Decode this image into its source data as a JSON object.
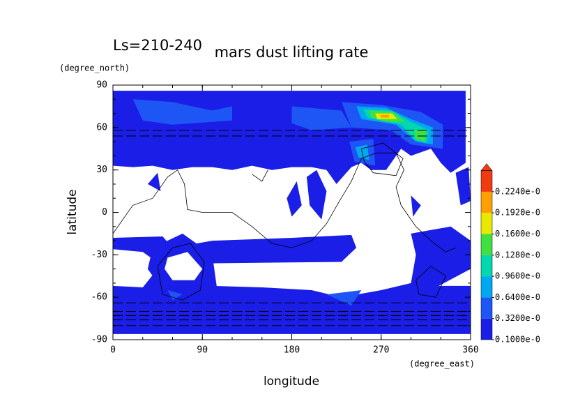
{
  "chart_data": {
    "type": "contour",
    "title": "mars dust lifting rate",
    "subtitle": "Ls=210-240",
    "x_label": "longitude",
    "x_unit": "(degree_east)",
    "y_label": "latitude",
    "y_unit": "(degree_north)",
    "xlim": [
      0,
      360
    ],
    "ylim": [
      -90,
      90
    ],
    "xticks": [
      0,
      90,
      180,
      270,
      360
    ],
    "yticks": [
      90,
      60,
      30,
      0,
      -30,
      -60,
      -90
    ],
    "levels": [
      {
        "value": 0.1,
        "label": "0.1000e-0"
      },
      {
        "value": 0.32,
        "label": "0.3200e-0"
      },
      {
        "value": 0.64,
        "label": "0.6400e-0"
      },
      {
        "value": 0.96,
        "label": "0.9600e-0"
      },
      {
        "value": 0.128,
        "label": "0.1280e-0"
      },
      {
        "value": 0.16,
        "label": "0.1600e-0"
      },
      {
        "value": 0.192,
        "label": "0.1920e-0"
      },
      {
        "value": 0.224,
        "label": "0.2240e-0"
      }
    ],
    "colors": [
      "#1a1ee6",
      "#1e55f5",
      "#00a8f0",
      "#00d8b0",
      "#40e040",
      "#e8e800",
      "#ffa000",
      "#f03a10"
    ]
  }
}
